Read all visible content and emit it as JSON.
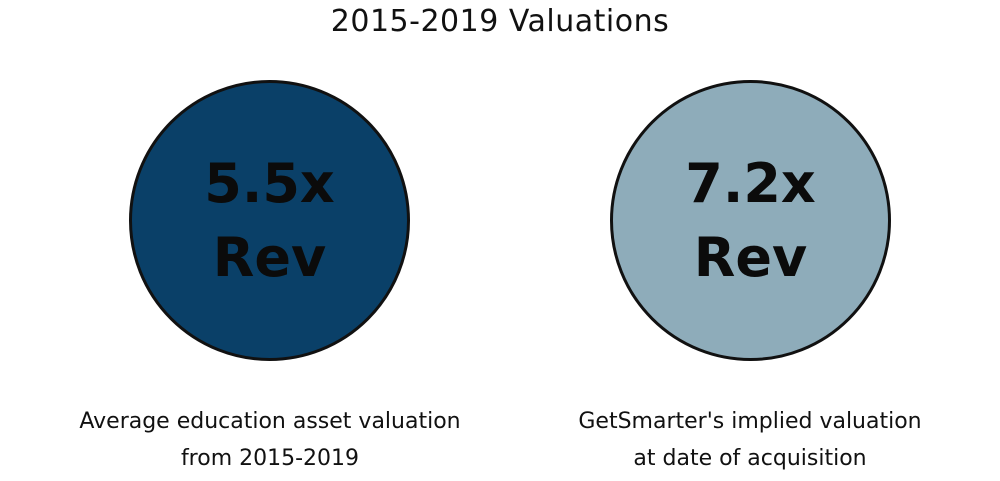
{
  "title": "2015-2019 Valuations",
  "colors": {
    "left_circle": "#0a4068",
    "right_circle": "#8eacba",
    "outline": "#111111"
  },
  "left": {
    "metric": "5.5x",
    "unit": "Rev",
    "caption_line1": "Average education asset valuation",
    "caption_line2": "from 2015-2019"
  },
  "right": {
    "metric": "7.2x",
    "unit": "Rev",
    "caption_line1": "GetSmarter's implied valuation",
    "caption_line2": "at date of acquisition"
  }
}
